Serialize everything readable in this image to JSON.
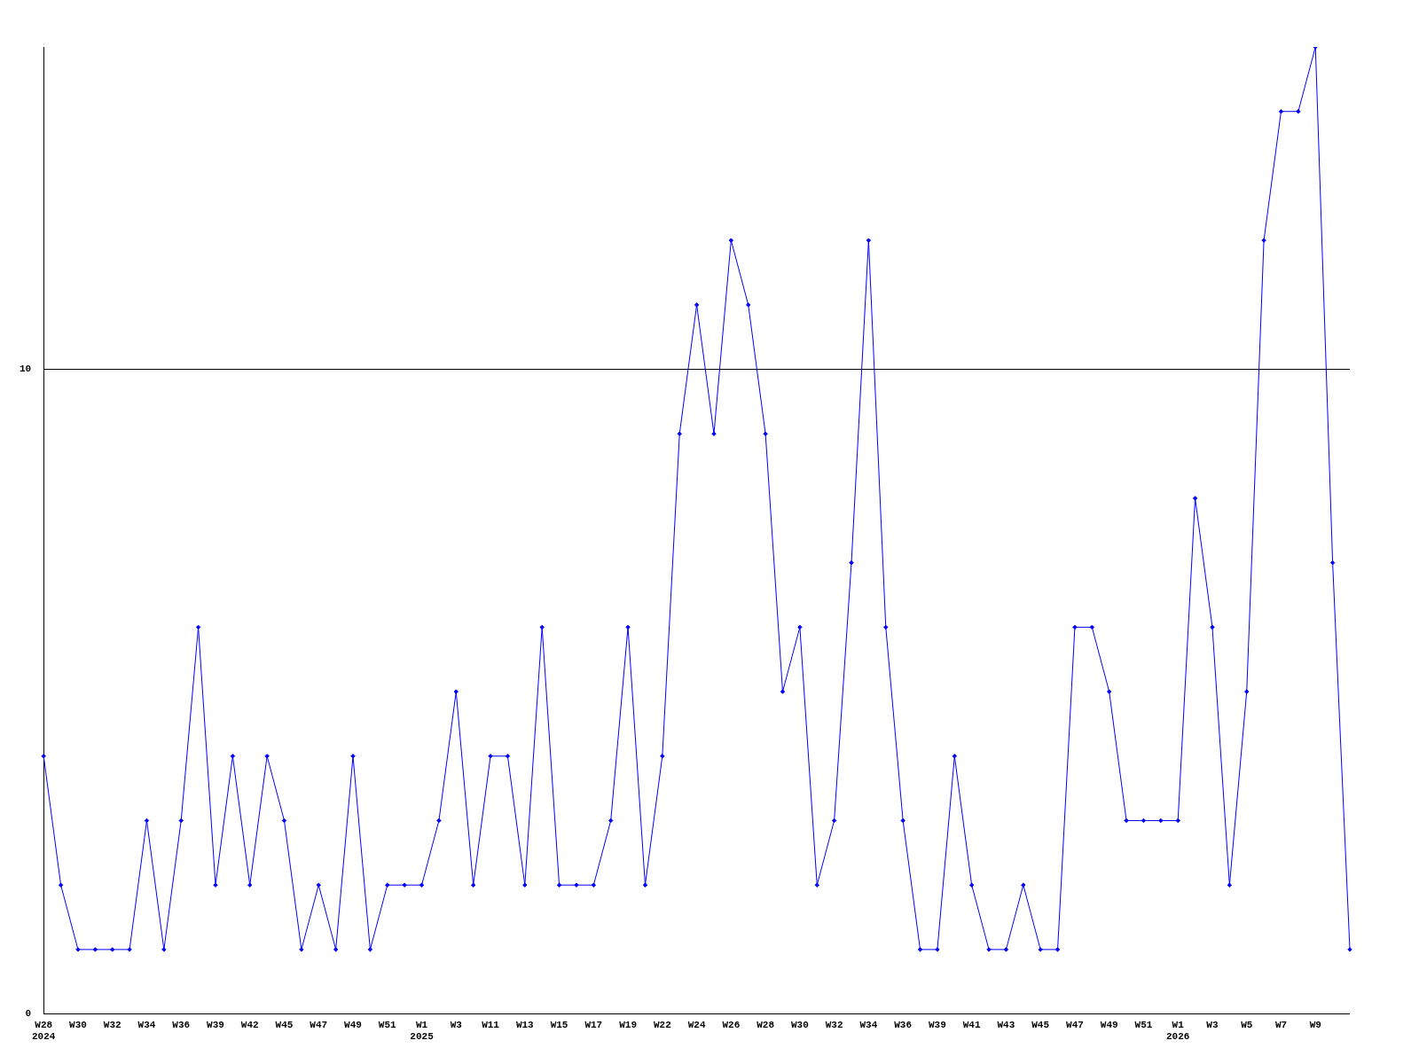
{
  "chart_data": {
    "type": "line",
    "categories": [
      "W28\n2024",
      null,
      "W30",
      null,
      "W32",
      null,
      "W34",
      null,
      "W36",
      null,
      "W39",
      null,
      "W42",
      null,
      "W45",
      null,
      "W47",
      null,
      "W49",
      null,
      "W51",
      null,
      "W1\n2025",
      null,
      "W3",
      null,
      "W11",
      null,
      "W13",
      null,
      "W15",
      null,
      "W17",
      null,
      "W19",
      null,
      "W22",
      null,
      "W24",
      null,
      "W26",
      null,
      "W28",
      null,
      "W30",
      null,
      "W32",
      null,
      "W34",
      null,
      "W36",
      null,
      "W39",
      null,
      "W41",
      null,
      "W43",
      null,
      "W45",
      null,
      "W47",
      null,
      "W49",
      null,
      "W51",
      null,
      "W1\n2026",
      null,
      "W3",
      null,
      "W5",
      null,
      "W7",
      null,
      "W9",
      null,
      null
    ],
    "series": [
      {
        "color": "#0000ff",
        "values": [
          4,
          2,
          1,
          1,
          1,
          1,
          3,
          1,
          3,
          6,
          2,
          4,
          2,
          4,
          3,
          1,
          2,
          1,
          4,
          1,
          2,
          2,
          2,
          3,
          5,
          2,
          4,
          4,
          2,
          6,
          2,
          2,
          2,
          3,
          6,
          2,
          4,
          9,
          11,
          9,
          12,
          11,
          9,
          5,
          6,
          2,
          3,
          7,
          12,
          6,
          3,
          1,
          1,
          4,
          2,
          1,
          1,
          2,
          1,
          1,
          6,
          6,
          5,
          3,
          3,
          3,
          3,
          8,
          6,
          2,
          5,
          12,
          14,
          14,
          15,
          7,
          1
        ]
      }
    ],
    "ylim": [
      0,
      15
    ],
    "yticks": [
      0,
      10
    ],
    "grid": "y",
    "legend": false,
    "marker": "diamond",
    "line_style": "solid"
  }
}
